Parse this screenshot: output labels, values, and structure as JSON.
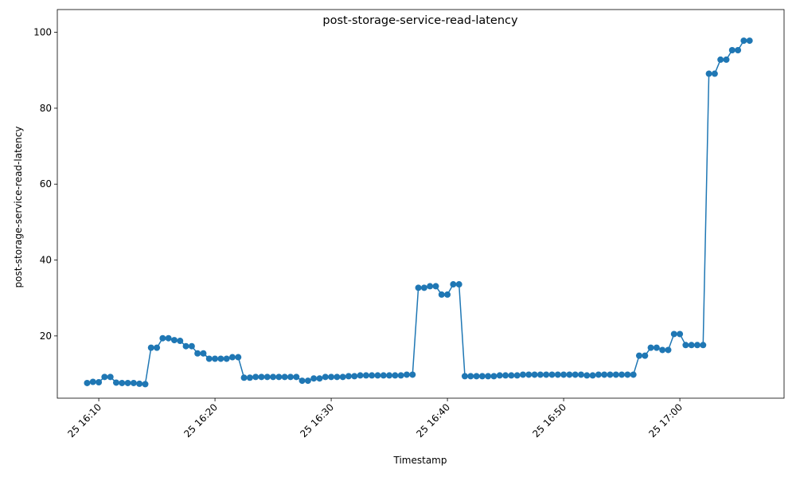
{
  "chart_data": {
    "type": "line",
    "title": "post-storage-service-read-latency",
    "x_label": "Timestamp",
    "y_label": "post-storage-service-read-latency",
    "x": [
      "25 16:09:00",
      "25 16:09:30",
      "25 16:10:00",
      "25 16:10:30",
      "25 16:11:00",
      "25 16:11:30",
      "25 16:12:00",
      "25 16:12:30",
      "25 16:13:00",
      "25 16:13:30",
      "25 16:14:00",
      "25 16:14:30",
      "25 16:15:00",
      "25 16:15:30",
      "25 16:16:00",
      "25 16:16:30",
      "25 16:17:00",
      "25 16:17:30",
      "25 16:18:00",
      "25 16:18:30",
      "25 16:19:00",
      "25 16:19:30",
      "25 16:20:00",
      "25 16:20:30",
      "25 16:21:00",
      "25 16:21:30",
      "25 16:22:00",
      "25 16:22:30",
      "25 16:23:00",
      "25 16:23:30",
      "25 16:24:00",
      "25 16:24:30",
      "25 16:25:00",
      "25 16:25:30",
      "25 16:26:00",
      "25 16:26:30",
      "25 16:27:00",
      "25 16:27:30",
      "25 16:28:00",
      "25 16:28:30",
      "25 16:29:00",
      "25 16:29:30",
      "25 16:30:00",
      "25 16:30:30",
      "25 16:31:00",
      "25 16:31:30",
      "25 16:32:00",
      "25 16:32:30",
      "25 16:33:00",
      "25 16:33:30",
      "25 16:34:00",
      "25 16:34:30",
      "25 16:35:00",
      "25 16:35:30",
      "25 16:36:00",
      "25 16:36:30",
      "25 16:37:00",
      "25 16:37:30",
      "25 16:38:00",
      "25 16:38:30",
      "25 16:39:00",
      "25 16:39:30",
      "25 16:40:00",
      "25 16:40:30",
      "25 16:41:00",
      "25 16:41:30",
      "25 16:42:00",
      "25 16:42:30",
      "25 16:43:00",
      "25 16:43:30",
      "25 16:44:00",
      "25 16:44:30",
      "25 16:45:00",
      "25 16:45:30",
      "25 16:46:00",
      "25 16:46:30",
      "25 16:47:00",
      "25 16:47:30",
      "25 16:48:00",
      "25 16:48:30",
      "25 16:49:00",
      "25 16:49:30",
      "25 16:50:00",
      "25 16:50:30",
      "25 16:51:00",
      "25 16:51:30",
      "25 16:52:00",
      "25 16:52:30",
      "25 16:53:00",
      "25 16:53:30",
      "25 16:54:00",
      "25 16:54:30",
      "25 16:55:00",
      "25 16:55:30",
      "25 16:56:00",
      "25 16:56:30",
      "25 16:57:00",
      "25 16:57:30",
      "25 16:58:00",
      "25 16:58:30",
      "25 16:59:00",
      "25 16:59:30",
      "25 17:00:00",
      "25 17:00:30",
      "25 17:01:00",
      "25 17:01:30",
      "25 17:02:00",
      "25 17:02:30",
      "25 17:03:00",
      "25 17:03:30",
      "25 17:04:00",
      "25 17:04:30",
      "25 17:05:00",
      "25 17:05:30",
      "25 17:06:00"
    ],
    "series": [
      {
        "color": "#1f77b4",
        "values": [
          7.6,
          7.9,
          7.8,
          9.2,
          9.2,
          7.7,
          7.6,
          7.6,
          7.6,
          7.4,
          7.3,
          16.9,
          16.9,
          19.4,
          19.4,
          18.9,
          18.7,
          17.3,
          17.3,
          15.4,
          15.4,
          14.0,
          14.0,
          14.0,
          14.0,
          14.4,
          14.4,
          9.0,
          9.0,
          9.2,
          9.2,
          9.2,
          9.2,
          9.2,
          9.2,
          9.2,
          9.2,
          8.2,
          8.2,
          8.8,
          8.8,
          9.2,
          9.2,
          9.2,
          9.2,
          9.4,
          9.4,
          9.6,
          9.6,
          9.6,
          9.6,
          9.6,
          9.6,
          9.6,
          9.6,
          9.8,
          9.8,
          32.7,
          32.7,
          33.1,
          33.1,
          30.9,
          30.9,
          33.6,
          33.6,
          9.4,
          9.4,
          9.4,
          9.4,
          9.4,
          9.4,
          9.6,
          9.6,
          9.6,
          9.6,
          9.8,
          9.8,
          9.8,
          9.8,
          9.8,
          9.8,
          9.8,
          9.8,
          9.8,
          9.8,
          9.8,
          9.6,
          9.6,
          9.8,
          9.8,
          9.8,
          9.8,
          9.8,
          9.8,
          9.8,
          14.8,
          14.8,
          16.9,
          16.9,
          16.3,
          16.3,
          20.5,
          20.5,
          17.6,
          17.6,
          17.6,
          17.6,
          89.1,
          89.1,
          92.8,
          92.8,
          95.3,
          95.3,
          97.8,
          97.8
        ]
      }
    ],
    "xlim": [
      "25 16:06:26",
      "25 17:08:58"
    ],
    "xticks": [
      "25 16:10",
      "25 16:20",
      "25 16:30",
      "25 16:40",
      "25 16:50",
      "25 17:00"
    ],
    "ylim": [
      3.6,
      106
    ],
    "yticks": [
      20,
      40,
      60,
      80,
      100
    ]
  }
}
